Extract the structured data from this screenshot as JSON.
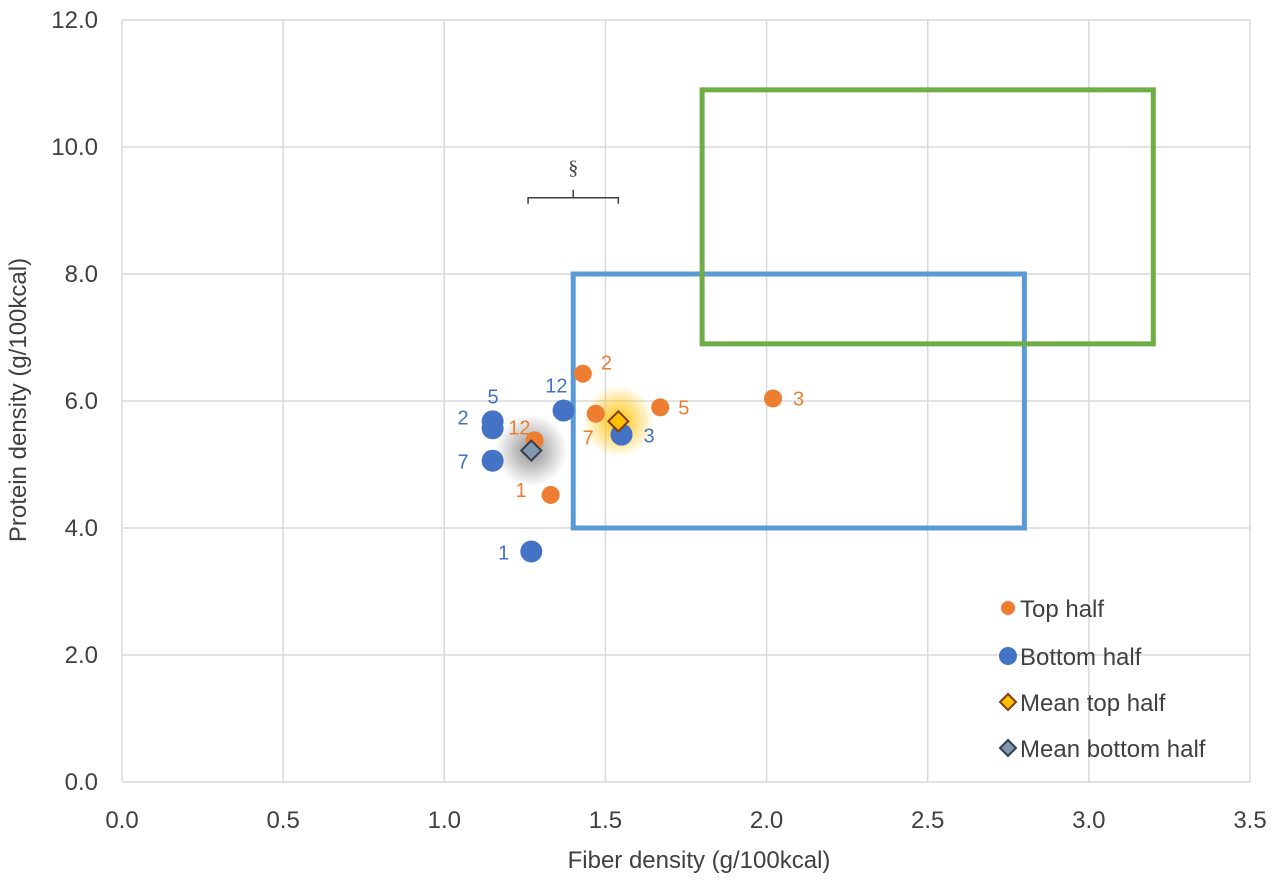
{
  "chart_data": {
    "type": "scatter",
    "xlabel": "Fiber density (g/100kcal)",
    "ylabel": "Protein density (g/100kcal)",
    "xlim": [
      0,
      3.5
    ],
    "ylim": [
      0,
      12
    ],
    "xticks": [
      "0.0",
      "0.5",
      "1.0",
      "1.5",
      "2.0",
      "2.5",
      "3.0",
      "3.5"
    ],
    "yticks": [
      "0.0",
      "2.0",
      "4.0",
      "6.0",
      "8.0",
      "10.0",
      "12.0"
    ],
    "grid": true,
    "legend_position": "bottom-right",
    "series": [
      {
        "name": "Top half",
        "color": "#ED7D31",
        "marker": "circle",
        "points": [
          {
            "x": 1.33,
            "y": 4.52,
            "label": "1"
          },
          {
            "x": 1.43,
            "y": 6.43,
            "label": "2"
          },
          {
            "x": 2.02,
            "y": 6.04,
            "label": "3"
          },
          {
            "x": 1.67,
            "y": 5.9,
            "label": "5"
          },
          {
            "x": 1.47,
            "y": 5.8,
            "label": "7"
          },
          {
            "x": 1.28,
            "y": 5.38,
            "label": "12"
          }
        ]
      },
      {
        "name": "Bottom half",
        "color": "#4472C4",
        "marker": "circle",
        "points": [
          {
            "x": 1.27,
            "y": 3.63,
            "label": "1"
          },
          {
            "x": 1.15,
            "y": 5.57,
            "label": "2"
          },
          {
            "x": 1.55,
            "y": 5.47,
            "label": "3"
          },
          {
            "x": 1.15,
            "y": 5.68,
            "label": "5"
          },
          {
            "x": 1.15,
            "y": 5.06,
            "label": "7"
          },
          {
            "x": 1.37,
            "y": 5.85,
            "label": "12"
          }
        ]
      },
      {
        "name": "Mean top half",
        "color": "#ED7D31",
        "marker": "diamond",
        "glow": "#FFC000",
        "points": [
          {
            "x": 1.54,
            "y": 5.68
          }
        ]
      },
      {
        "name": "Mean bottom half",
        "color": "#44546A",
        "marker": "diamond",
        "glow": "#808080",
        "points": [
          {
            "x": 1.27,
            "y": 5.22
          }
        ]
      }
    ],
    "regions": [
      {
        "name": "blue-box",
        "color": "#5B9BD5",
        "x": [
          1.4,
          2.8
        ],
        "y": [
          4.0,
          8.0
        ]
      },
      {
        "name": "green-box",
        "color": "#70AD47",
        "x": [
          1.8,
          3.2
        ],
        "y": [
          6.9,
          10.9
        ]
      }
    ],
    "annotation": {
      "text": "§",
      "x": [
        1.26,
        1.54
      ],
      "y": 9.2
    }
  }
}
